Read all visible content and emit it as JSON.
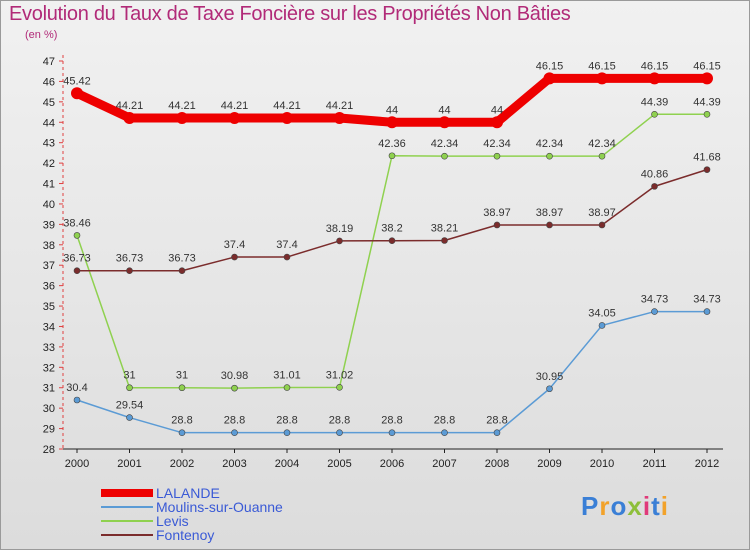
{
  "title": "Evolution du Taux de Taxe Foncière sur les Propriétés Non Bâties",
  "unit": "(en %)",
  "logo": "Proxiti",
  "chart_data": {
    "type": "line",
    "x": [
      "2000",
      "2001",
      "2002",
      "2003",
      "2004",
      "2005",
      "2006",
      "2007",
      "2008",
      "2009",
      "2010",
      "2011",
      "2012"
    ],
    "ylim": [
      28,
      47
    ],
    "yticks": [
      28,
      29,
      30,
      31,
      32,
      33,
      34,
      35,
      36,
      37,
      38,
      39,
      40,
      41,
      42,
      43,
      44,
      45,
      46,
      47
    ],
    "grid": false,
    "legend_position": "bottom-left",
    "series": [
      {
        "name": "LALANDE",
        "color": "#ee0000",
        "values": [
          45.42,
          44.21,
          44.21,
          44.21,
          44.21,
          44.21,
          44,
          44,
          44,
          46.15,
          46.15,
          46.15,
          46.15
        ],
        "labels": [
          "45.42",
          "44.21",
          "44.21",
          "44.21",
          "44.21",
          "44.21",
          "44",
          "44",
          "44",
          "46.15",
          "46.15",
          "46.15",
          "46.15"
        ]
      },
      {
        "name": "Moulins-sur-Ouanne",
        "color": "#5b9bd5",
        "values": [
          30.4,
          29.54,
          28.8,
          28.8,
          28.8,
          28.8,
          28.8,
          28.8,
          28.8,
          30.95,
          34.05,
          34.73,
          34.73
        ],
        "labels": [
          "30.4",
          "29.54",
          "28.8",
          "28.8",
          "28.8",
          "28.8",
          "28.8",
          "28.8",
          "28.8",
          "30.95",
          "34.05",
          "34.73",
          "34.73"
        ]
      },
      {
        "name": "Levis",
        "color": "#8fd14f",
        "values": [
          38.46,
          31,
          31,
          30.98,
          31.01,
          31.02,
          42.36,
          42.34,
          42.34,
          42.34,
          42.34,
          44.39,
          44.39
        ],
        "labels": [
          "38.46",
          "31",
          "31",
          "30.98",
          "31.01",
          "31.02",
          "42.36",
          "42.34",
          "42.34",
          "42.34",
          "42.34",
          "44.39",
          "44.39"
        ]
      },
      {
        "name": "Fontenoy",
        "color": "#7b2c2c",
        "values": [
          36.73,
          36.73,
          36.73,
          37.4,
          37.4,
          38.19,
          38.2,
          38.21,
          38.97,
          38.97,
          38.97,
          40.86,
          41.68
        ],
        "labels": [
          "36.73",
          "36.73",
          "36.73",
          "37.4",
          "37.4",
          "38.19",
          "38.2",
          "38.21",
          "38.97",
          "38.97",
          "38.97",
          "40.86",
          "41.68"
        ]
      }
    ]
  }
}
